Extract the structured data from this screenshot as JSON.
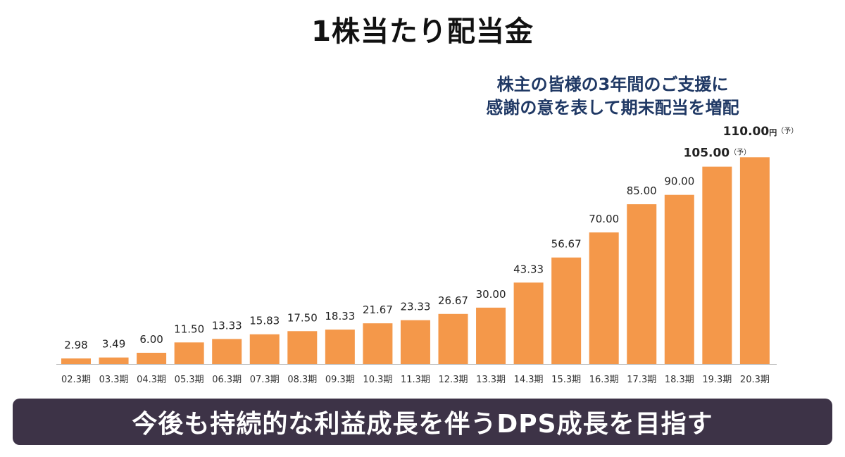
{
  "title": "1株当たり配当金",
  "note": {
    "line1": "株主の皆様の3年間のご支援に",
    "line2": "感謝の意を表して期末配当を増配"
  },
  "banner": "今後も持続的な利益成長を伴うDPS成長を目指す",
  "colors": {
    "bar": "#f4984a",
    "note": "#1f3864",
    "banner": "#3d3347"
  },
  "chart_data": {
    "type": "bar",
    "title": "1株当たり配当金",
    "xlabel": "",
    "ylabel": "",
    "ylim": [
      0,
      115
    ],
    "grid": false,
    "categories": [
      "02.3期",
      "03.3期",
      "04.3期",
      "05.3期",
      "06.3期",
      "07.3期",
      "08.3期",
      "09.3期",
      "10.3期",
      "11.3期",
      "12.3期",
      "13.3期",
      "14.3期",
      "15.3期",
      "16.3期",
      "17.3期",
      "18.3期",
      "19.3期",
      "20.3期"
    ],
    "values": [
      2.98,
      3.49,
      6.0,
      11.5,
      13.33,
      15.83,
      17.5,
      18.33,
      21.67,
      23.33,
      26.67,
      30.0,
      43.33,
      56.67,
      70.0,
      85.0,
      90.0,
      105.0,
      110.0
    ],
    "labels": [
      "2.98",
      "3.49",
      "6.00",
      "11.50",
      "13.33",
      "15.83",
      "17.50",
      "18.33",
      "21.67",
      "23.33",
      "26.67",
      "30.00",
      "43.33",
      "56.67",
      "70.00",
      "85.00",
      "90.00",
      "105.00",
      "110.00"
    ],
    "annotations": [
      {
        "index": 17,
        "suffix": "（予）"
      },
      {
        "index": 18,
        "unit": "円",
        "suffix": "（予）"
      }
    ]
  }
}
